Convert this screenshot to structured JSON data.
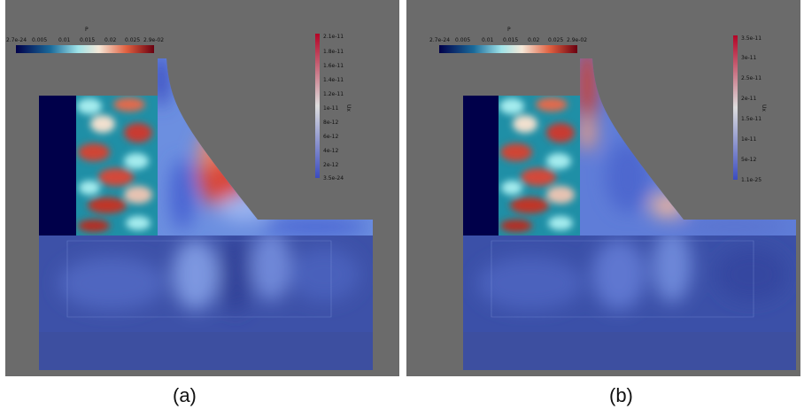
{
  "panels": [
    {
      "id": "a",
      "caption": "(a)",
      "p_colorbar": {
        "title": "P",
        "ticks": [
          "2.7e-24",
          "0.005",
          "0.01",
          "0.015",
          "0.02",
          "0.025",
          "2.9e-02"
        ]
      },
      "u_colorbar": {
        "title": "Ux",
        "ticks": [
          "2.1e-11",
          "1.8e-11",
          "1.6e-11",
          "1.4e-11",
          "1.2e-11",
          "1e-11",
          "8e-12",
          "6e-12",
          "4e-12",
          "2e-12",
          "3.5e-24"
        ]
      }
    },
    {
      "id": "b",
      "caption": "(b)",
      "p_colorbar": {
        "title": "P",
        "ticks": [
          "2.7e-24",
          "0.005",
          "0.01",
          "0.015",
          "0.02",
          "0.025",
          "2.9e-02"
        ]
      },
      "u_colorbar": {
        "title": "Ux",
        "ticks": [
          "3.5e-11",
          "3e-11",
          "2.5e-11",
          "2e-11",
          "1.5e-11",
          "1e-11",
          "5e-12",
          "1.1e-25"
        ]
      }
    }
  ],
  "colors": {
    "background": "#6b6b6b",
    "cool": "#3b4cc0",
    "warm": "#b40426",
    "dark": "#00004a"
  }
}
